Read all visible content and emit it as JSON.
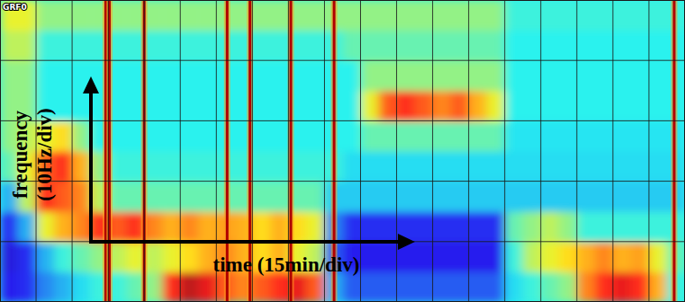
{
  "chart_data": {
    "type": "spectrogram",
    "title": "GRF0",
    "x_label": "time (15min/div)",
    "y_label": "frequency (10Hz/div)",
    "xlim": [
      0,
      285
    ],
    "ylim": [
      0,
      50
    ],
    "xticks": [
      0,
      15,
      30,
      45,
      60,
      75,
      90,
      105,
      120,
      135,
      150,
      165,
      180,
      195,
      210,
      225,
      240,
      255,
      270,
      285
    ],
    "yticks": [
      0,
      10,
      20,
      30,
      40,
      50
    ],
    "grid": true,
    "tick_labels": false,
    "color_range": [
      0,
      1
    ],
    "events": [
      44,
      45.5,
      60,
      94.5,
      104,
      121,
      139,
      280.5
    ],
    "cells": [
      [
        0.12,
        0.15,
        0.25,
        0.3,
        0.35,
        0.4,
        0.4,
        0.45,
        0.5,
        0.85,
        0.95,
        0.9,
        0.8,
        0.75,
        0.8,
        0.85,
        0.9,
        0.8,
        0.3,
        0.2,
        0.2,
        0.2,
        0.2,
        0.2,
        0.2,
        0.2,
        0.2,
        0.2,
        0.35,
        0.4,
        0.45,
        0.5,
        0.75,
        0.85,
        0.9,
        0.85,
        0.7,
        0.4
      ],
      [
        0.1,
        0.15,
        0.3,
        0.4,
        0.45,
        0.5,
        0.55,
        0.6,
        0.55,
        0.6,
        0.65,
        0.7,
        0.75,
        0.7,
        0.65,
        0.7,
        0.6,
        0.55,
        0.2,
        0.12,
        0.12,
        0.12,
        0.12,
        0.12,
        0.12,
        0.12,
        0.12,
        0.12,
        0.4,
        0.55,
        0.6,
        0.65,
        0.7,
        0.75,
        0.7,
        0.72,
        0.6,
        0.45
      ],
      [
        0.15,
        0.3,
        0.6,
        0.7,
        0.75,
        0.85,
        0.8,
        0.85,
        0.75,
        0.7,
        0.75,
        0.7,
        0.72,
        0.7,
        0.65,
        0.7,
        0.65,
        0.6,
        0.25,
        0.15,
        0.15,
        0.15,
        0.15,
        0.15,
        0.15,
        0.15,
        0.15,
        0.15,
        0.45,
        0.5,
        0.55,
        0.5,
        0.4,
        0.4,
        0.4,
        0.4,
        0.4,
        0.4
      ],
      [
        0.3,
        0.55,
        0.85,
        0.8,
        0.75,
        0.55,
        0.45,
        0.45,
        0.45,
        0.45,
        0.45,
        0.45,
        0.45,
        0.45,
        0.45,
        0.45,
        0.45,
        0.45,
        0.33,
        0.33,
        0.33,
        0.33,
        0.33,
        0.33,
        0.33,
        0.33,
        0.33,
        0.33,
        0.33,
        0.33,
        0.33,
        0.33,
        0.33,
        0.33,
        0.33,
        0.33,
        0.33,
        0.33
      ],
      [
        0.45,
        0.6,
        0.8,
        0.85,
        0.7,
        0.5,
        0.4,
        0.4,
        0.4,
        0.4,
        0.4,
        0.4,
        0.4,
        0.4,
        0.4,
        0.4,
        0.4,
        0.4,
        0.4,
        0.35,
        0.35,
        0.35,
        0.35,
        0.35,
        0.35,
        0.35,
        0.35,
        0.35,
        0.35,
        0.35,
        0.35,
        0.35,
        0.35,
        0.35,
        0.35,
        0.35,
        0.35,
        0.35
      ],
      [
        0.5,
        0.55,
        0.6,
        0.65,
        0.5,
        0.38,
        0.38,
        0.38,
        0.38,
        0.38,
        0.38,
        0.38,
        0.38,
        0.38,
        0.38,
        0.38,
        0.38,
        0.38,
        0.38,
        0.38,
        0.45,
        0.45,
        0.45,
        0.45,
        0.45,
        0.45,
        0.45,
        0.45,
        0.36,
        0.36,
        0.36,
        0.36,
        0.36,
        0.36,
        0.36,
        0.36,
        0.36,
        0.36
      ],
      [
        0.5,
        0.5,
        0.38,
        0.38,
        0.38,
        0.38,
        0.38,
        0.38,
        0.38,
        0.38,
        0.38,
        0.38,
        0.38,
        0.38,
        0.38,
        0.38,
        0.38,
        0.38,
        0.38,
        0.38,
        0.6,
        0.8,
        0.85,
        0.8,
        0.75,
        0.8,
        0.7,
        0.6,
        0.38,
        0.38,
        0.38,
        0.38,
        0.38,
        0.38,
        0.38,
        0.38,
        0.38,
        0.38
      ],
      [
        0.5,
        0.5,
        0.38,
        0.38,
        0.38,
        0.38,
        0.38,
        0.38,
        0.38,
        0.38,
        0.38,
        0.38,
        0.38,
        0.38,
        0.38,
        0.38,
        0.38,
        0.38,
        0.38,
        0.38,
        0.5,
        0.5,
        0.5,
        0.5,
        0.5,
        0.5,
        0.5,
        0.5,
        0.38,
        0.38,
        0.38,
        0.38,
        0.38,
        0.38,
        0.38,
        0.38,
        0.38,
        0.38
      ],
      [
        0.55,
        0.55,
        0.4,
        0.4,
        0.4,
        0.4,
        0.4,
        0.4,
        0.4,
        0.4,
        0.4,
        0.4,
        0.4,
        0.4,
        0.4,
        0.4,
        0.4,
        0.4,
        0.4,
        0.45,
        0.45,
        0.45,
        0.45,
        0.45,
        0.45,
        0.45,
        0.45,
        0.45,
        0.38,
        0.38,
        0.38,
        0.38,
        0.38,
        0.38,
        0.38,
        0.38,
        0.38,
        0.38
      ],
      [
        0.6,
        0.6,
        0.5,
        0.5,
        0.5,
        0.5,
        0.5,
        0.5,
        0.5,
        0.5,
        0.5,
        0.5,
        0.5,
        0.5,
        0.5,
        0.5,
        0.5,
        0.5,
        0.5,
        0.5,
        0.5,
        0.5,
        0.5,
        0.5,
        0.5,
        0.5,
        0.5,
        0.5,
        0.4,
        0.4,
        0.4,
        0.4,
        0.4,
        0.4,
        0.4,
        0.4,
        0.4,
        0.4
      ]
    ]
  }
}
